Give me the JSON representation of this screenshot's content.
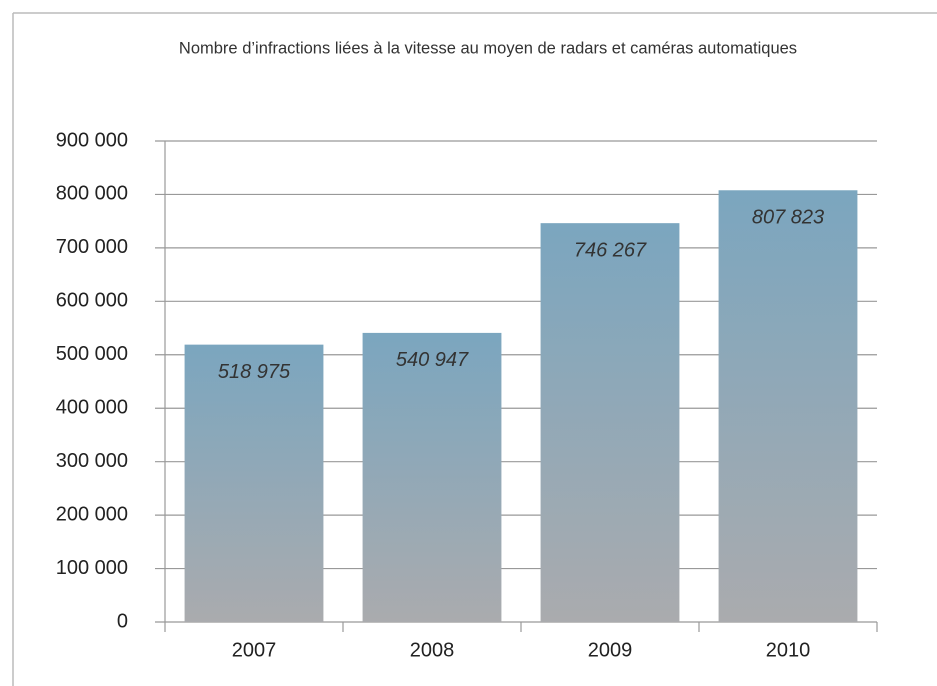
{
  "chart_data": {
    "type": "bar",
    "title": "Nombre d’infractions liées à la vitesse au moyen de radars et caméras automatiques",
    "categories": [
      "2007",
      "2008",
      "2009",
      "2010"
    ],
    "values": [
      518975,
      540947,
      746267,
      807823
    ],
    "value_labels": [
      "518 975",
      "540 947",
      "746 267",
      "807 823"
    ],
    "color": "#7ba6bf",
    "ylim": [
      0,
      900000
    ],
    "yticks": [
      0,
      {
        "value": 100000,
        "label": "100 000"
      },
      {
        "value": 200000,
        "label": "200 000"
      },
      {
        "value": 300000,
        "label": "300 000"
      },
      {
        "value": 400000,
        "label": "400 000"
      },
      {
        "value": 500000,
        "label": "500 000"
      },
      {
        "value": 600000,
        "label": "600 000"
      },
      {
        "value": 700000,
        "label": "700 000"
      },
      {
        "value": 800000,
        "label": "800 000"
      },
      {
        "value": 900000,
        "label": "900 000"
      }
    ],
    "grid": true
  }
}
